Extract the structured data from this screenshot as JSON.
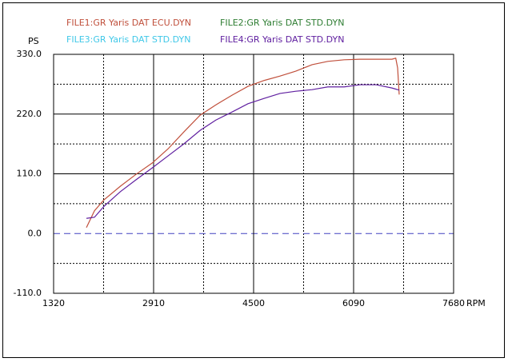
{
  "chart_data": {
    "type": "line",
    "y_axis_label": "PS",
    "x_axis_label": "RPM",
    "x": [
      1842,
      1970,
      2120,
      2380,
      2630,
      2890,
      3140,
      3390,
      3650,
      3900,
      4160,
      4410,
      4670,
      4920,
      5170,
      5430,
      5680,
      5940,
      6190,
      6450,
      6700,
      6760,
      6790,
      6815
    ],
    "series": [
      {
        "name": "FILE1:GR Yaris DAT  ECU.DYN",
        "color": "#c0503c",
        "values": [
          11,
          42,
          62,
          87,
          109,
          130,
          156,
          187,
          218,
          237,
          255,
          271,
          282,
          290,
          299,
          311,
          317,
          320,
          321,
          321,
          321,
          323,
          305,
          256
        ]
      },
      {
        "name": "FILE2:GR Yaris DAT STD.DYN",
        "color": "#2e7d32",
        "values": [
          null,
          null,
          null,
          null,
          null,
          null,
          null,
          null,
          null,
          null,
          null,
          null,
          null,
          null,
          null,
          null,
          null,
          null,
          null,
          null,
          null,
          null,
          null,
          null
        ]
      },
      {
        "name": "FILE3:GR Yaris DAT STD.DYN",
        "color": "#40c8e8",
        "values": [
          null,
          null,
          null,
          null,
          null,
          null,
          null,
          null,
          null,
          null,
          null,
          null,
          null,
          null,
          null,
          null,
          null,
          null,
          null,
          null,
          null,
          null,
          null,
          null
        ]
      },
      {
        "name": "FILE4:GR Yaris DAT STD.DYN",
        "color": "#6020a0",
        "values": [
          28,
          30,
          50,
          77,
          99,
          121,
          143,
          165,
          190,
          209,
          224,
          239,
          249,
          258,
          262,
          265,
          270,
          270,
          274,
          274,
          268,
          266,
          265,
          264
        ]
      }
    ],
    "xlim": [
      1320,
      7680
    ],
    "xticks": [
      1320,
      2910,
      4500,
      6090,
      7680
    ],
    "ylim": [
      -110,
      330
    ],
    "yticks": [
      {
        "value": 330,
        "label": "330.0"
      },
      {
        "value": 220,
        "label": "220.0"
      },
      {
        "value": 110,
        "label": "110.0"
      },
      {
        "value": 0,
        "label": "0.0"
      },
      {
        "value": -110,
        "label": "-110.0"
      }
    ],
    "minor_xticks": [
      2115,
      3705,
      5295,
      6885
    ],
    "minor_yticks": [
      275,
      165,
      55,
      -55
    ],
    "grid": true,
    "zero_line_color": "#4040c0"
  }
}
